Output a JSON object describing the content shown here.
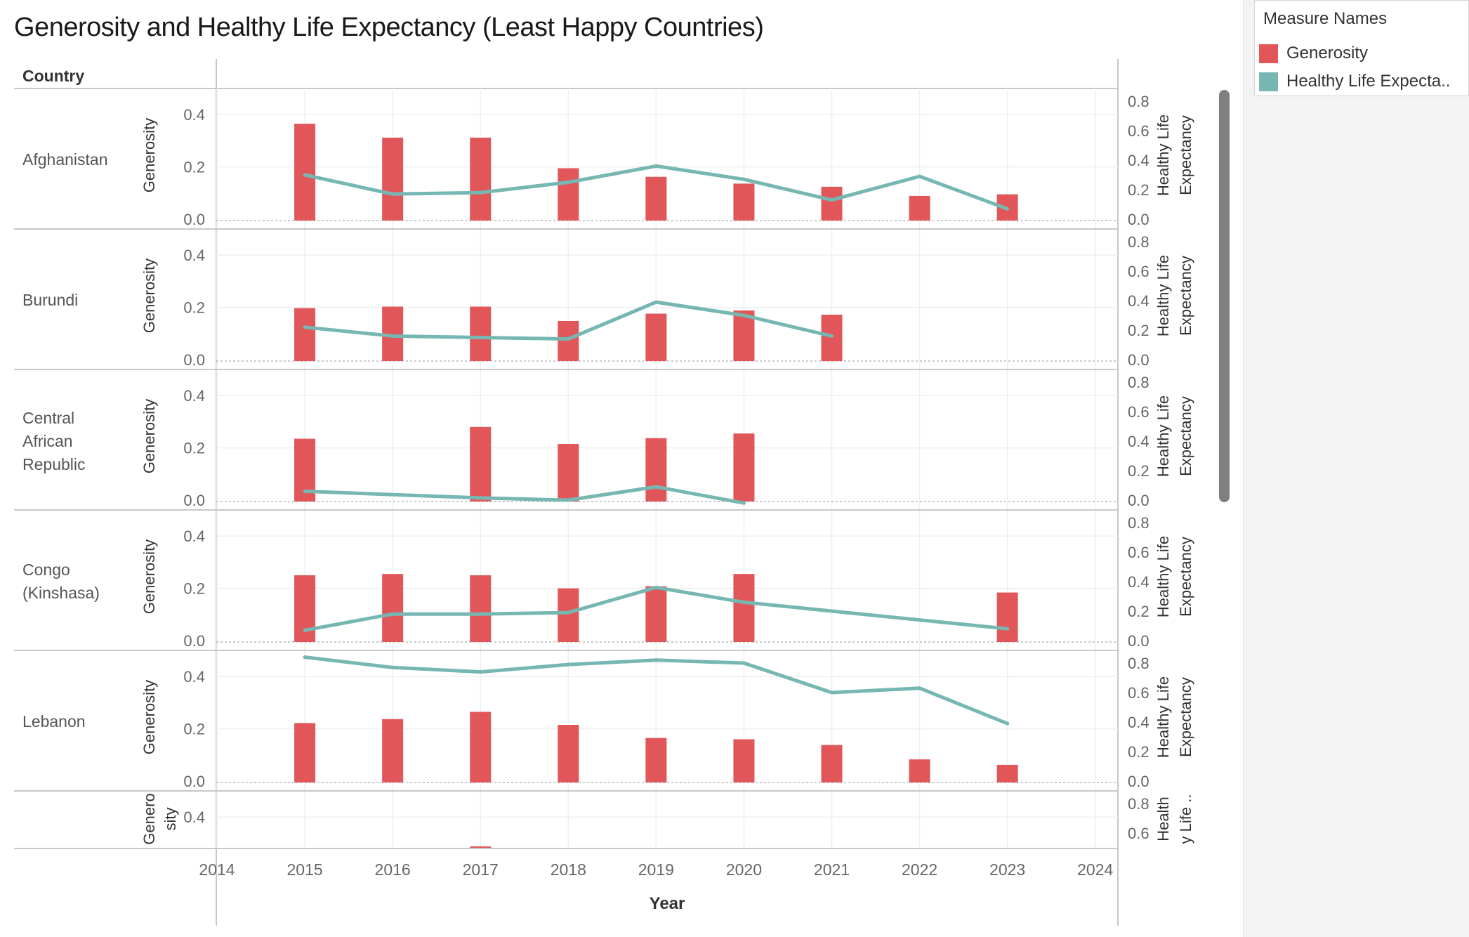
{
  "title": "Generosity and Healthy Life Expectancy (Least Happy Countries)",
  "legend": {
    "title": "Measure Names",
    "items": [
      {
        "label": "Generosity",
        "color": "#e15759"
      },
      {
        "label": "Healthy Life Expecta..",
        "color": "#76b7b2"
      }
    ]
  },
  "row_header": "Country",
  "chart_data": {
    "type": "bar+line",
    "xlabel": "Year",
    "x_ticks": [
      "2014",
      "2015",
      "2016",
      "2017",
      "2018",
      "2019",
      "2020",
      "2021",
      "2022",
      "2023",
      "2024"
    ],
    "left_axis": {
      "label": "Generosity",
      "ticks": [
        "0.4",
        "0.2",
        "0.0"
      ],
      "range": [
        0,
        0.5
      ]
    },
    "right_axis": {
      "label_lines": [
        "Healthy Life",
        "Expectancy"
      ],
      "ticks": [
        "0.8",
        "0.6",
        "0.4",
        "0.2",
        "0.0"
      ],
      "range": [
        0,
        0.8
      ]
    },
    "partial_row": {
      "left_label_lines": [
        "Genero",
        "sity"
      ],
      "right_label_lines": [
        "Health",
        "y Life .."
      ],
      "left_ticks": [
        "0.4"
      ],
      "right_ticks": [
        "0.8",
        "0.6"
      ]
    },
    "countries": [
      {
        "name_lines": [
          "Afghanistan"
        ],
        "generosity": [
          {
            "x": 2015,
            "y": 0.365
          },
          {
            "x": 2016,
            "y": 0.312
          },
          {
            "x": 2017,
            "y": 0.312
          },
          {
            "x": 2018,
            "y": 0.195
          },
          {
            "x": 2019,
            "y": 0.162
          },
          {
            "x": 2020,
            "y": 0.136
          },
          {
            "x": 2021,
            "y": 0.124
          },
          {
            "x": 2022,
            "y": 0.089
          },
          {
            "x": 2023,
            "y": 0.095
          }
        ],
        "healthy_life_expectancy": [
          {
            "x": 2015,
            "y": 0.3
          },
          {
            "x": 2016,
            "y": 0.17
          },
          {
            "x": 2017,
            "y": 0.18
          },
          {
            "x": 2018,
            "y": 0.25
          },
          {
            "x": 2019,
            "y": 0.36
          },
          {
            "x": 2020,
            "y": 0.27
          },
          {
            "x": 2021,
            "y": 0.13
          },
          {
            "x": 2022,
            "y": 0.29
          },
          {
            "x": 2023,
            "y": 0.07
          }
        ]
      },
      {
        "name_lines": [
          "Burundi"
        ],
        "generosity": [
          {
            "x": 2015,
            "y": 0.197
          },
          {
            "x": 2016,
            "y": 0.203
          },
          {
            "x": 2017,
            "y": 0.203
          },
          {
            "x": 2018,
            "y": 0.148
          },
          {
            "x": 2019,
            "y": 0.176
          },
          {
            "x": 2020,
            "y": 0.188
          },
          {
            "x": 2021,
            "y": 0.172
          }
        ],
        "healthy_life_expectancy": [
          {
            "x": 2015,
            "y": 0.22
          },
          {
            "x": 2016,
            "y": 0.16
          },
          {
            "x": 2017,
            "y": 0.15
          },
          {
            "x": 2018,
            "y": 0.14
          },
          {
            "x": 2019,
            "y": 0.39
          },
          {
            "x": 2020,
            "y": 0.3
          },
          {
            "x": 2021,
            "y": 0.16
          }
        ]
      },
      {
        "name_lines": [
          "Central",
          "African",
          "Republic"
        ],
        "generosity": [
          {
            "x": 2015,
            "y": 0.235
          },
          {
            "x": 2017,
            "y": 0.28
          },
          {
            "x": 2018,
            "y": 0.215
          },
          {
            "x": 2019,
            "y": 0.237
          },
          {
            "x": 2020,
            "y": 0.255
          }
        ],
        "healthy_life_expectancy": [
          {
            "x": 2015,
            "y": 0.06
          },
          {
            "x": 2017,
            "y": 0.015
          },
          {
            "x": 2018,
            "y": 0.0
          },
          {
            "x": 2019,
            "y": 0.09
          },
          {
            "x": 2020,
            "y": -0.02
          }
        ]
      },
      {
        "name_lines": [
          "Congo",
          "(Kinshasa)"
        ],
        "generosity": [
          {
            "x": 2015,
            "y": 0.25
          },
          {
            "x": 2016,
            "y": 0.255
          },
          {
            "x": 2017,
            "y": 0.25
          },
          {
            "x": 2018,
            "y": 0.2
          },
          {
            "x": 2019,
            "y": 0.208
          },
          {
            "x": 2020,
            "y": 0.255
          },
          {
            "x": 2023,
            "y": 0.184
          }
        ],
        "healthy_life_expectancy": [
          {
            "x": 2015,
            "y": 0.07
          },
          {
            "x": 2016,
            "y": 0.18
          },
          {
            "x": 2017,
            "y": 0.18
          },
          {
            "x": 2018,
            "y": 0.19
          },
          {
            "x": 2019,
            "y": 0.36
          },
          {
            "x": 2020,
            "y": 0.26
          },
          {
            "x": 2023,
            "y": 0.08
          }
        ]
      },
      {
        "name_lines": [
          "Lebanon"
        ],
        "generosity": [
          {
            "x": 2015,
            "y": 0.222
          },
          {
            "x": 2016,
            "y": 0.237
          },
          {
            "x": 2017,
            "y": 0.265
          },
          {
            "x": 2018,
            "y": 0.215
          },
          {
            "x": 2019,
            "y": 0.165
          },
          {
            "x": 2020,
            "y": 0.16
          },
          {
            "x": 2021,
            "y": 0.138
          },
          {
            "x": 2022,
            "y": 0.083
          },
          {
            "x": 2023,
            "y": 0.062
          }
        ],
        "healthy_life_expectancy": [
          {
            "x": 2015,
            "y": 0.84
          },
          {
            "x": 2016,
            "y": 0.77
          },
          {
            "x": 2017,
            "y": 0.74
          },
          {
            "x": 2018,
            "y": 0.79
          },
          {
            "x": 2019,
            "y": 0.82
          },
          {
            "x": 2020,
            "y": 0.8
          },
          {
            "x": 2021,
            "y": 0.6
          },
          {
            "x": 2022,
            "y": 0.63
          },
          {
            "x": 2023,
            "y": 0.39
          }
        ]
      }
    ]
  }
}
